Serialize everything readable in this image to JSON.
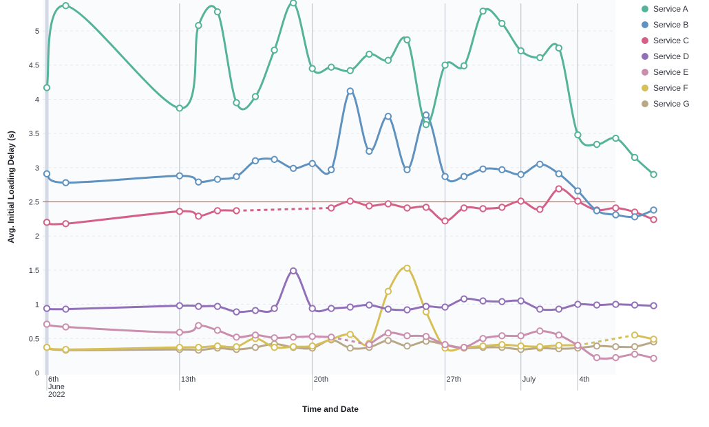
{
  "chart_data": {
    "type": "line",
    "xlabel": "Time and Date",
    "ylabel": "Avg. Initial Loading Delay (s)",
    "ylim": [
      0,
      5.4
    ],
    "yticks": [
      0,
      0.5,
      1,
      1.5,
      2,
      2.5,
      3,
      3.5,
      4,
      4.5,
      5
    ],
    "grid": true,
    "legend_position": "top-right",
    "threshold": {
      "value": 2.5,
      "color": "#e7664c"
    },
    "x": [
      "2022-06-06",
      "2022-06-07",
      "2022-06-13",
      "2022-06-14",
      "2022-06-15",
      "2022-06-16",
      "2022-06-17",
      "2022-06-18",
      "2022-06-19",
      "2022-06-20",
      "2022-06-21",
      "2022-06-22",
      "2022-06-23",
      "2022-06-24",
      "2022-06-25",
      "2022-06-26",
      "2022-06-27",
      "2022-06-28",
      "2022-06-29",
      "2022-06-30",
      "2022-07-01",
      "2022-07-02",
      "2022-07-03",
      "2022-07-04",
      "2022-07-05",
      "2022-07-06",
      "2022-07-07",
      "2022-07-08"
    ],
    "x_tick_labels": [
      {
        "date": "2022-06-06",
        "lines": [
          "6th",
          "June",
          "2022"
        ]
      },
      {
        "date": "2022-06-13",
        "lines": [
          "13th"
        ]
      },
      {
        "date": "2022-06-20",
        "lines": [
          "20th"
        ]
      },
      {
        "date": "2022-06-27",
        "lines": [
          "27th"
        ]
      },
      {
        "date": "2022-07-01",
        "lines": [
          "July"
        ]
      },
      {
        "date": "2022-07-04",
        "lines": [
          "4th"
        ]
      }
    ],
    "series": [
      {
        "name": "Service A",
        "color": "#54b399",
        "values": [
          4.17,
          5.37,
          3.87,
          5.08,
          5.28,
          3.95,
          4.04,
          4.72,
          5.41,
          4.45,
          4.47,
          4.42,
          4.66,
          4.57,
          4.87,
          3.63,
          4.5,
          4.49,
          5.29,
          5.11,
          4.71,
          4.61,
          4.75,
          3.48,
          3.34,
          3.43,
          3.15,
          2.9
        ]
      },
      {
        "name": "Service B",
        "color": "#6092c0",
        "values": [
          2.91,
          2.78,
          2.88,
          2.79,
          2.83,
          2.87,
          3.1,
          3.12,
          2.99,
          3.06,
          2.97,
          4.12,
          3.24,
          3.75,
          2.97,
          3.77,
          2.87,
          2.87,
          2.98,
          2.97,
          2.9,
          3.05,
          2.91,
          2.66,
          2.37,
          2.31,
          2.28,
          2.38
        ]
      },
      {
        "name": "Service C",
        "color": "#d36086",
        "values": [
          2.2,
          2.18,
          2.36,
          2.29,
          2.37,
          2.37,
          null,
          null,
          null,
          null,
          2.41,
          2.51,
          2.44,
          2.47,
          2.41,
          2.42,
          2.22,
          2.41,
          2.4,
          2.42,
          2.51,
          2.39,
          2.69,
          2.51,
          2.38,
          2.41,
          2.35,
          2.24
        ],
        "dashed_gaps": true
      },
      {
        "name": "Service D",
        "color": "#9170b8",
        "values": [
          0.94,
          0.93,
          0.98,
          0.97,
          0.97,
          0.89,
          0.91,
          0.94,
          1.49,
          0.94,
          0.94,
          0.96,
          0.99,
          0.93,
          0.92,
          0.97,
          0.96,
          1.08,
          1.05,
          1.04,
          1.05,
          0.93,
          0.93,
          1.0,
          0.99,
          1.0,
          0.99,
          0.98
        ]
      },
      {
        "name": "Service E",
        "color": "#ca8eae",
        "values": [
          0.71,
          0.67,
          0.59,
          0.69,
          0.62,
          0.52,
          0.55,
          0.51,
          0.52,
          0.53,
          0.52,
          null,
          0.41,
          0.58,
          0.54,
          0.53,
          0.41,
          0.37,
          0.5,
          0.54,
          0.54,
          0.61,
          0.55,
          0.4,
          0.22,
          0.22,
          0.27,
          0.21
        ],
        "dashed_gaps": true
      },
      {
        "name": "Service F",
        "color": "#d6bf57",
        "values": [
          0.37,
          0.34,
          0.37,
          0.37,
          0.39,
          0.38,
          0.5,
          0.37,
          0.38,
          0.39,
          0.49,
          0.56,
          0.43,
          1.19,
          1.53,
          0.89,
          0.36,
          0.37,
          0.39,
          0.41,
          0.39,
          0.38,
          0.4,
          0.4,
          null,
          null,
          0.55,
          0.49
        ],
        "dashed_gaps": true
      },
      {
        "name": "Service G",
        "color": "#b9a888",
        "values": [
          0.37,
          0.33,
          0.34,
          0.33,
          0.36,
          0.34,
          0.37,
          0.42,
          0.37,
          0.36,
          0.48,
          0.36,
          0.37,
          0.47,
          0.39,
          0.46,
          0.41,
          0.36,
          0.37,
          0.37,
          0.34,
          0.36,
          0.35,
          0.36,
          0.39,
          0.38,
          0.38,
          0.45
        ]
      }
    ]
  }
}
